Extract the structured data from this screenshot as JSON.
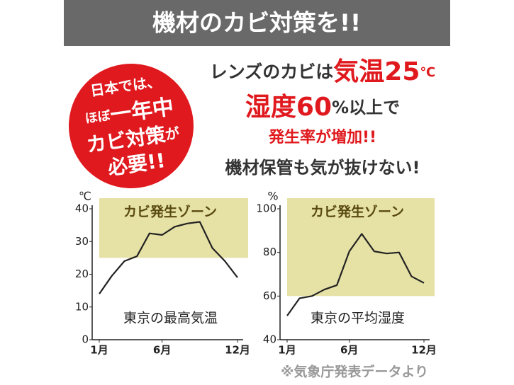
{
  "header": {
    "title": "機材のカビ対策を!!"
  },
  "badge": {
    "lines": [
      [
        "日本では、"
      ],
      [
        "ほぼ",
        "一年中"
      ],
      [
        "カビ対策",
        "が"
      ],
      [
        "必要!!"
      ]
    ]
  },
  "headline": {
    "lines": [
      [
        "レンズのカビは",
        "気温25",
        "℃"
      ],
      [
        "湿度60",
        "%以上で"
      ],
      [
        "発生率が増加!!"
      ],
      [
        "機材保管も気が抜けない!"
      ]
    ]
  },
  "chart_data": [
    {
      "type": "line",
      "title": "東京の最高気温",
      "y_unit": "℃",
      "color": "#222222",
      "x": [
        1,
        2,
        3,
        4,
        5,
        6,
        7,
        8,
        9,
        10,
        11,
        12
      ],
      "values": [
        14,
        19.5,
        24,
        25.5,
        32.5,
        32,
        34.5,
        35.5,
        36,
        28,
        24,
        19
      ],
      "xlim": [
        1,
        12
      ],
      "xticks": [
        {
          "value": 1,
          "label": "1月"
        },
        {
          "value": 6,
          "label": "6月"
        },
        {
          "value": 12,
          "label": "12月"
        }
      ],
      "ylim": [
        0,
        40
      ],
      "yticks": [
        0,
        10,
        20,
        30,
        40
      ],
      "zone": {
        "label": "カビ発生ゾーン",
        "from": 25,
        "color": "#e6e2a6"
      }
    },
    {
      "type": "line",
      "title": "東京の平均湿度",
      "y_unit": "%",
      "color": "#222222",
      "x": [
        1,
        2,
        3,
        4,
        5,
        6,
        7,
        8,
        9,
        10,
        11,
        12
      ],
      "values": [
        51,
        59,
        60,
        63,
        65,
        80.5,
        88.5,
        80.5,
        79.5,
        80,
        69,
        66
      ],
      "xlim": [
        1,
        12
      ],
      "xticks": [
        {
          "value": 1,
          "label": "1月"
        },
        {
          "value": 6,
          "label": "6月"
        },
        {
          "value": 12,
          "label": "12月"
        }
      ],
      "ylim": [
        40,
        100
      ],
      "yticks": [
        40,
        60,
        80,
        100
      ],
      "zone": {
        "label": "カビ発生ゾーン",
        "from": 60,
        "color": "#e6e2a6"
      }
    }
  ],
  "footnote": "※気象庁発表データより"
}
